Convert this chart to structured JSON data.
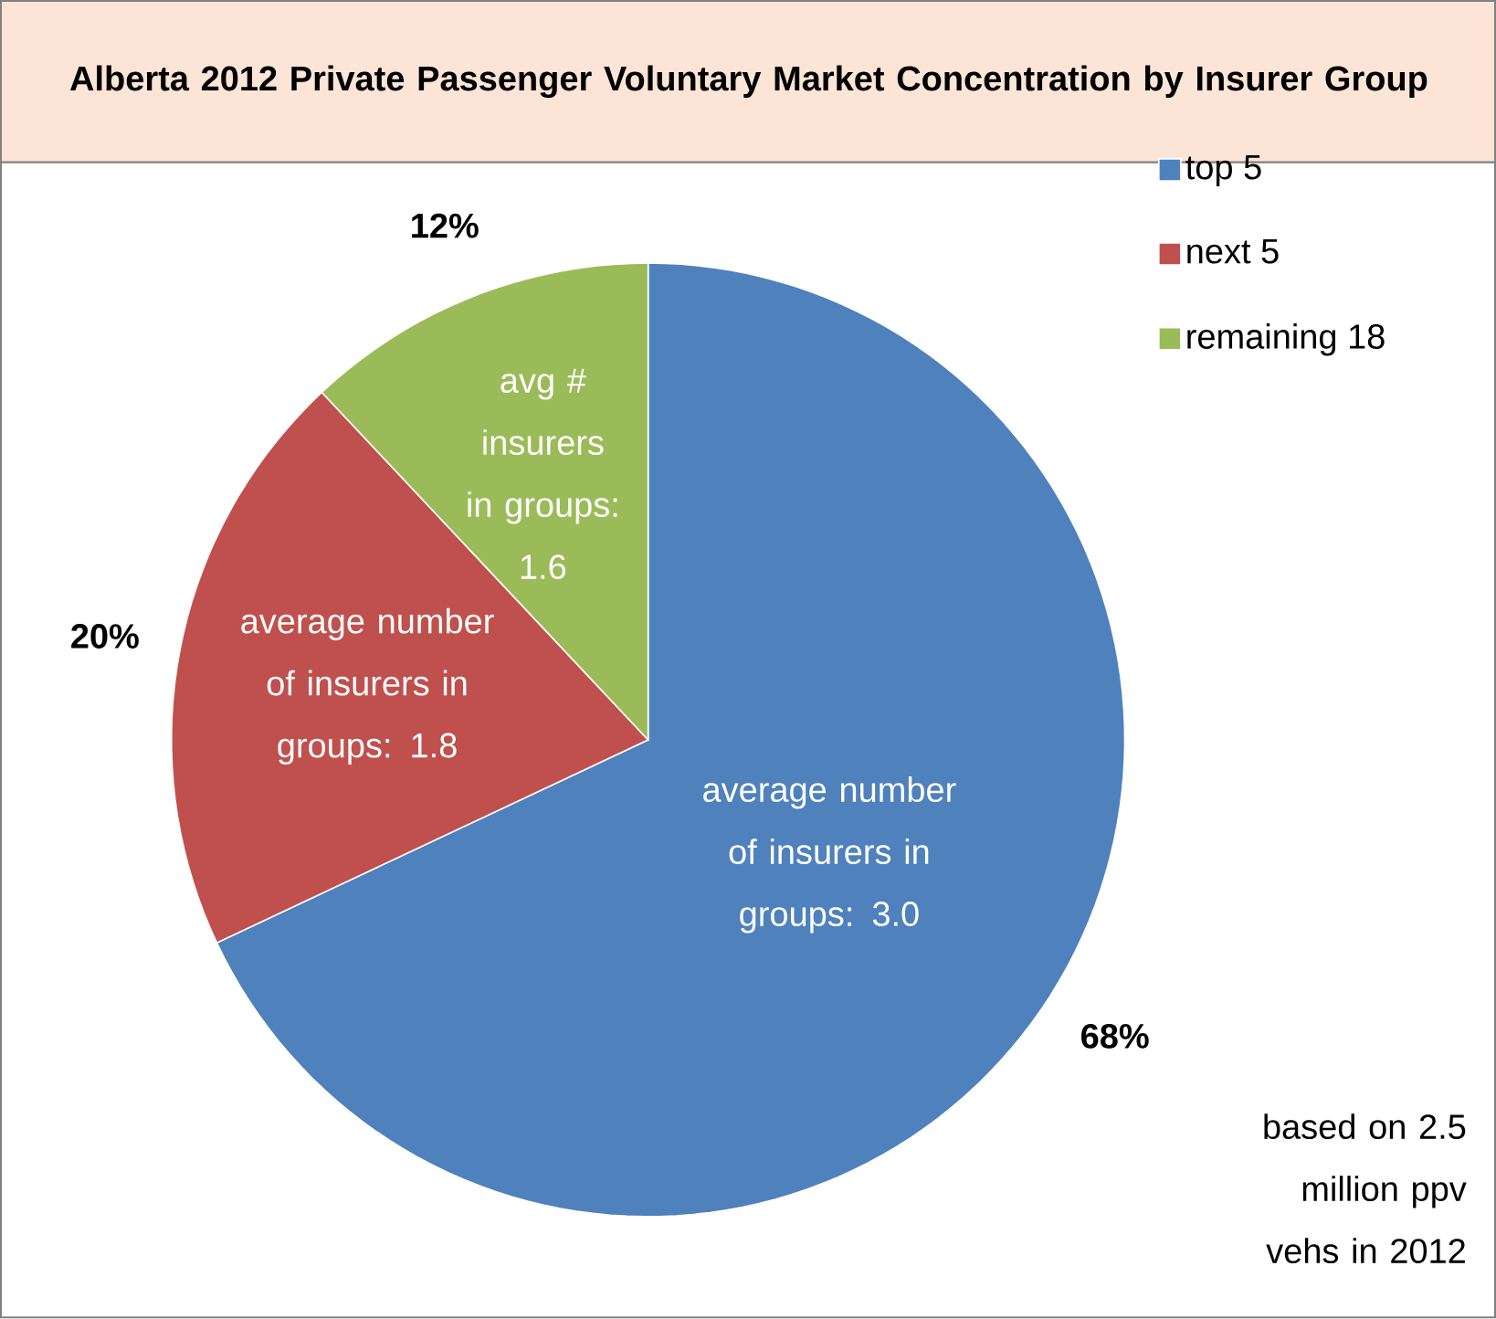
{
  "chart_data": {
    "type": "pie",
    "title": "Alberta 2012 Private Passenger Voluntary Market Concentration by Insurer Group",
    "categories": [
      "top 5",
      "next 5",
      "remaining 18"
    ],
    "values": [
      68,
      20,
      12
    ],
    "colors": [
      "#4f81bd",
      "#c0504d",
      "#9bbb59"
    ],
    "value_labels": [
      "68%",
      "20%",
      "12%"
    ],
    "legend": "top right",
    "annotations": [
      "average number of insurers in groups: 3.0",
      "average number of insurers in groups: 1.8",
      "avg # insurers in groups: 1.6",
      "based on 2.5 million ppv vehs in 2012"
    ]
  }
}
